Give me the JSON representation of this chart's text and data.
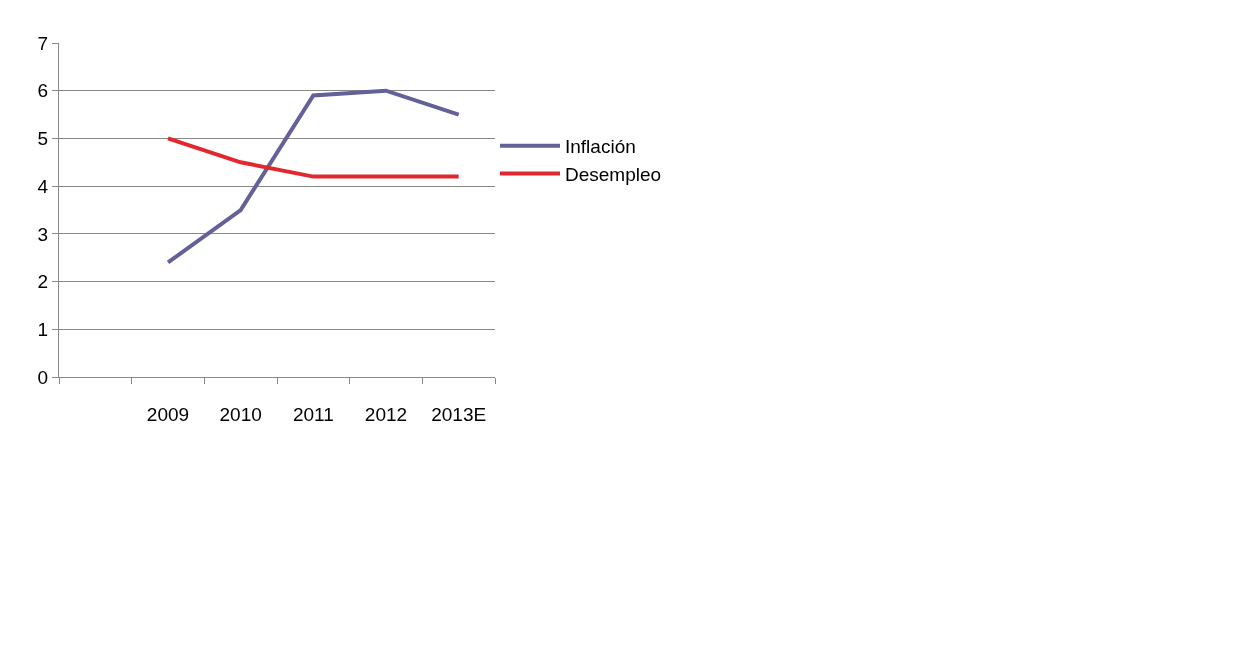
{
  "chart_data": {
    "type": "line",
    "categories": [
      null,
      "2009",
      "2010",
      "2011",
      "2012",
      "2013E"
    ],
    "series": [
      {
        "name": "Inflación",
        "color": "#646099",
        "values": [
          null,
          2.4,
          3.5,
          5.9,
          6.0,
          5.5
        ]
      },
      {
        "name": "Desempleo",
        "color": "#e0282e",
        "values": [
          null,
          5.0,
          4.5,
          4.2,
          4.2,
          4.2
        ]
      }
    ],
    "ylim": [
      0,
      7
    ],
    "yticks": [
      0,
      1,
      2,
      3,
      4,
      5,
      6,
      7
    ],
    "grid": "y",
    "legend": "right",
    "marker": "none",
    "line_style": "solid"
  }
}
